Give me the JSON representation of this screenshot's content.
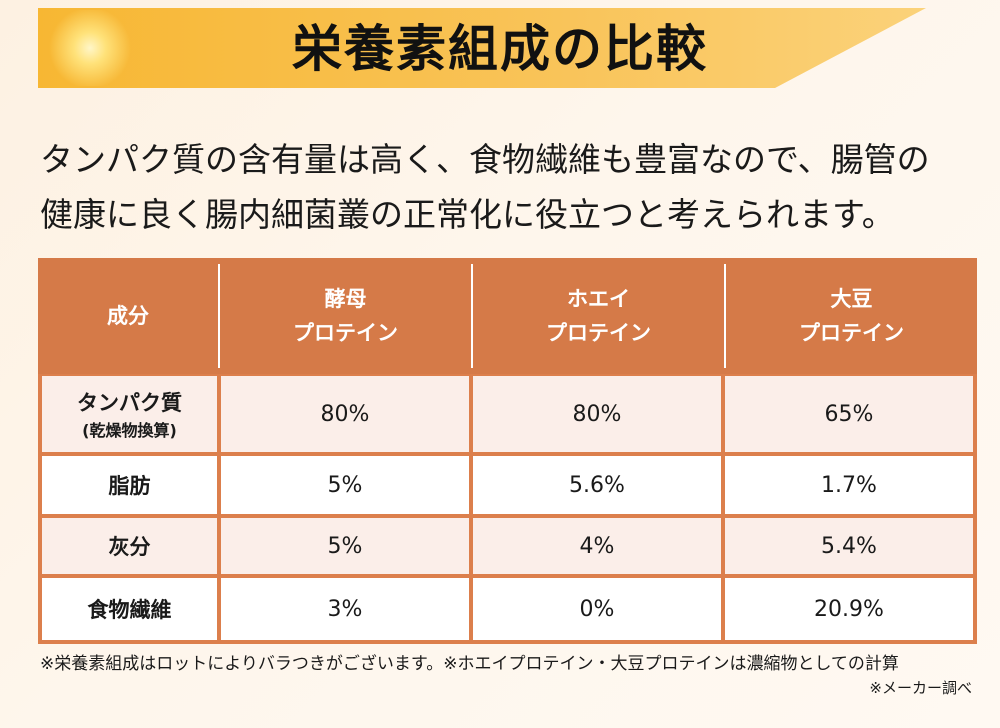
{
  "title": "栄養素組成の比較",
  "lead": {
    "line1": "タンパク質の含有量は高く、食物繊維も豊富なので、腸管の",
    "line2": "健康に良く腸内細菌叢の正常化に役立つと考えられます。"
  },
  "table": {
    "headers": [
      {
        "line1": "成分",
        "line2": ""
      },
      {
        "line1": "酵母",
        "line2": "プロテイン"
      },
      {
        "line1": "ホエイ",
        "line2": "プロテイン"
      },
      {
        "line1": "大豆",
        "line2": "プロテイン"
      }
    ],
    "rows": [
      {
        "label": "タンパク質",
        "sub": "(乾燥物換算)",
        "values": [
          "80%",
          "80%",
          "65%"
        ]
      },
      {
        "label": "脂肪",
        "sub": "",
        "values": [
          "5%",
          "5.6%",
          "1.7%"
        ]
      },
      {
        "label": "灰分",
        "sub": "",
        "values": [
          "5%",
          "4%",
          "5.4%"
        ]
      },
      {
        "label": "食物繊維",
        "sub": "",
        "values": [
          "3%",
          "0%",
          "20.9%"
        ]
      }
    ]
  },
  "footnote": "※栄養素組成はロットによりバラつきがございます。※ホエイプロテイン・大豆プロテインは濃縮物としての計算",
  "source": "※メーカー調べ",
  "colors": {
    "banner": "#f7b733",
    "header": "#d57a48",
    "row_odd": "#fbeee9",
    "row_even": "#ffffff"
  }
}
